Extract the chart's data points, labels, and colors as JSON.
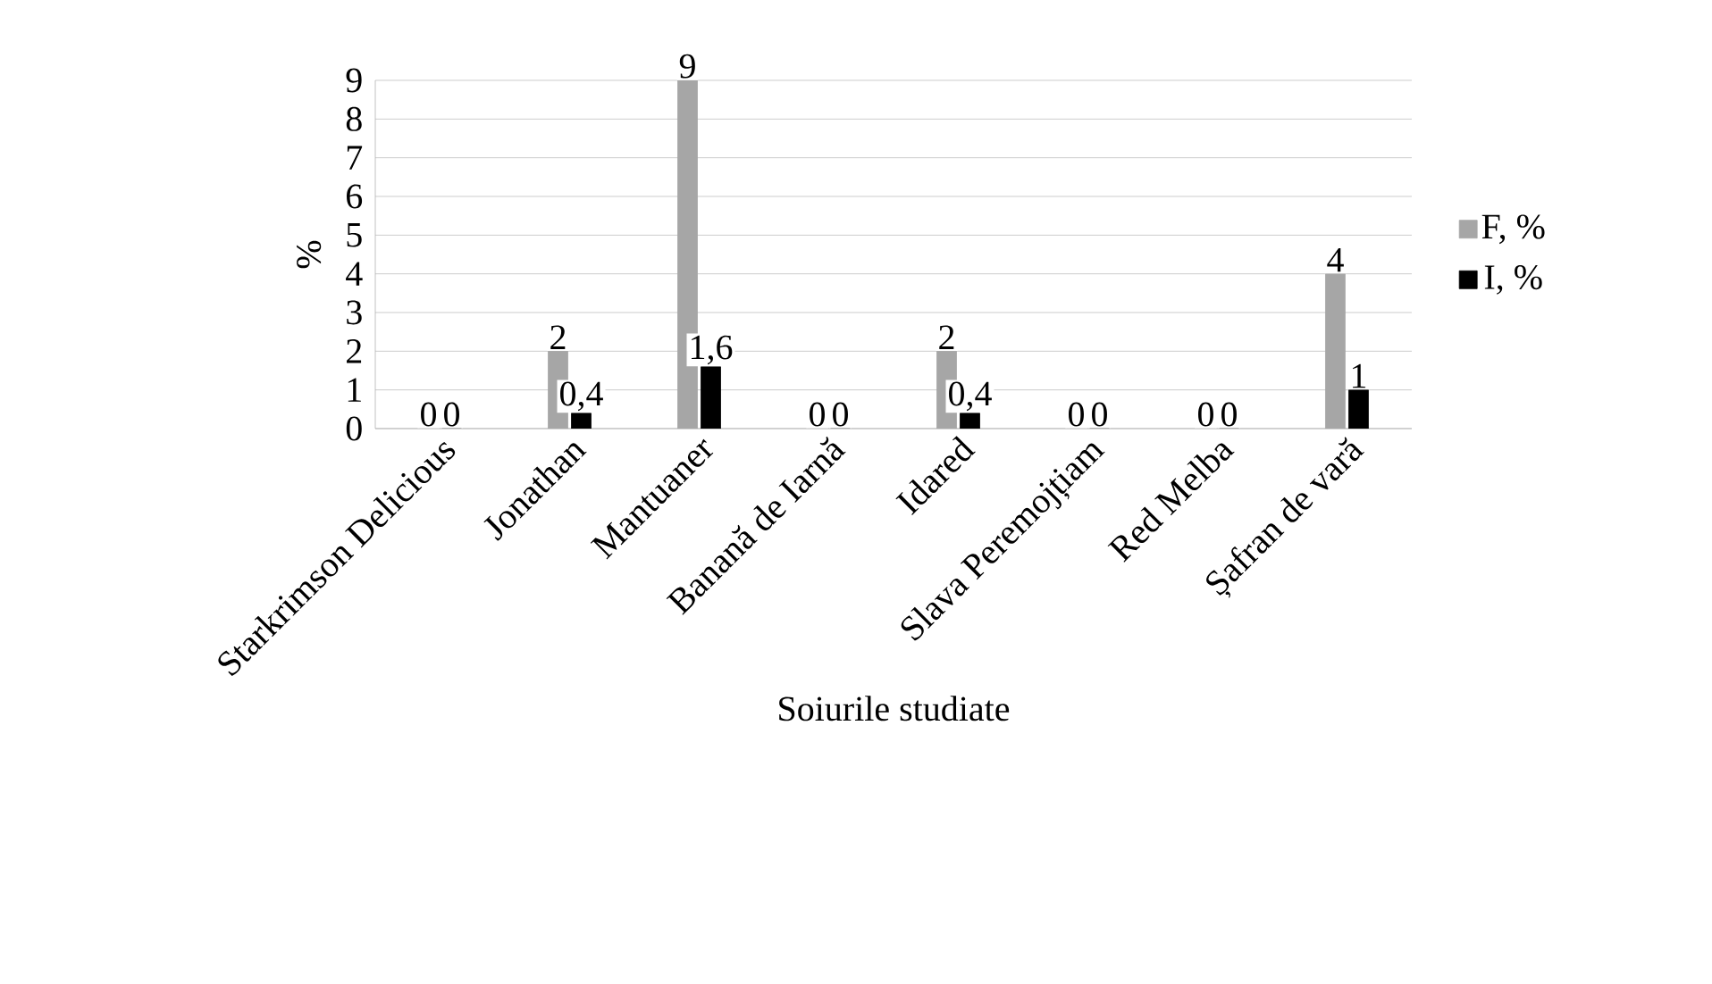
{
  "chart_data": {
    "type": "bar",
    "xlabel": "Soiurile studiate",
    "ylabel": "%",
    "categories": [
      "Starkrimson Delicious",
      "Jonathan",
      "Mantuaner",
      "Banană de Iarnă",
      "Idared",
      "Slava Peremojțiam",
      "Red Melba",
      "Șafran de vară"
    ],
    "series": [
      {
        "name": "F, %",
        "color": "#a6a6a6",
        "values": [
          0,
          2,
          9,
          0,
          2,
          0,
          0,
          4
        ],
        "value_labels": [
          "0",
          "2",
          "9",
          "0",
          "2",
          "0",
          "0",
          "4"
        ]
      },
      {
        "name": "I, %",
        "color": "#000000",
        "values": [
          0,
          0.4,
          1.6,
          0,
          0.4,
          0,
          0,
          1
        ],
        "value_labels": [
          "0",
          "0,4",
          "1,6",
          "0",
          "0,4",
          "0",
          "0",
          "1"
        ]
      }
    ],
    "ylim": [
      0,
      9
    ],
    "yticks": [
      0,
      1,
      2,
      3,
      4,
      5,
      6,
      7,
      8,
      9
    ],
    "grid": "y",
    "legend": "right"
  }
}
